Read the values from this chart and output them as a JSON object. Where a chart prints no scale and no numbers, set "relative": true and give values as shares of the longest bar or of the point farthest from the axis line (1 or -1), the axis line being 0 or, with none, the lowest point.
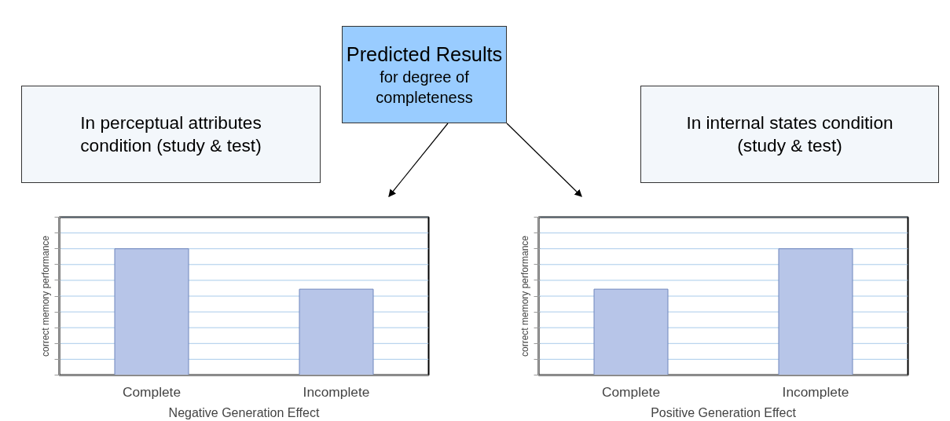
{
  "chart_data": [
    {
      "type": "bar",
      "title": "In perceptual attributes condition (study & test)",
      "annotations": [
        "Predicted Results",
        "for degree of completeness"
      ],
      "xlabel": "Negative Generation Effect",
      "ylabel": "correct memory performance",
      "categories": [
        "Complete",
        "Incomplete"
      ],
      "values": [
        1,
        0.68
      ],
      "color": "#b7c5e8",
      "relative": true,
      "ref_lines": [
        {
          "axis": "y",
          "value": 0.125,
          "color": "#a9cbea"
        },
        {
          "axis": "y",
          "value": 0.25,
          "color": "#a9cbea"
        },
        {
          "axis": "y",
          "value": 0.375,
          "color": "#a9cbea"
        },
        {
          "axis": "y",
          "value": 0.5,
          "color": "#a9cbea"
        },
        {
          "axis": "y",
          "value": 0.625,
          "color": "#a9cbea"
        },
        {
          "axis": "y",
          "value": 0.75,
          "color": "#a9cbea"
        },
        {
          "axis": "y",
          "value": 0.875,
          "color": "#a9cbea"
        },
        {
          "axis": "y",
          "value": 1,
          "color": "#a9cbea"
        },
        {
          "axis": "y",
          "value": 1.125,
          "color": "#a9cbea"
        },
        {
          "axis": "y",
          "value": 1.25,
          "color": "#a9cbea"
        }
      ]
    },
    {
      "type": "bar",
      "title": "In internal states condition (study & test)",
      "xlabel": "Positive Generation Effect",
      "ylabel": "correct memory performance",
      "categories": [
        "Complete",
        "Incomplete"
      ],
      "values": [
        0.68,
        1
      ],
      "color": "#b7c5e8",
      "relative": true,
      "ref_lines": [
        {
          "axis": "y",
          "value": 0.125,
          "color": "#a9cbea"
        },
        {
          "axis": "y",
          "value": 0.25,
          "color": "#a9cbea"
        },
        {
          "axis": "y",
          "value": 0.375,
          "color": "#a9cbea"
        },
        {
          "axis": "y",
          "value": 0.5,
          "color": "#a9cbea"
        },
        {
          "axis": "y",
          "value": 0.625,
          "color": "#a9cbea"
        },
        {
          "axis": "y",
          "value": 0.75,
          "color": "#a9cbea"
        },
        {
          "axis": "y",
          "value": 0.875,
          "color": "#a9cbea"
        },
        {
          "axis": "y",
          "value": 1,
          "color": "#a9cbea"
        },
        {
          "axis": "y",
          "value": 1.125,
          "color": "#a9cbea"
        },
        {
          "axis": "y",
          "value": 1.25,
          "color": "#a9cbea"
        }
      ]
    }
  ]
}
